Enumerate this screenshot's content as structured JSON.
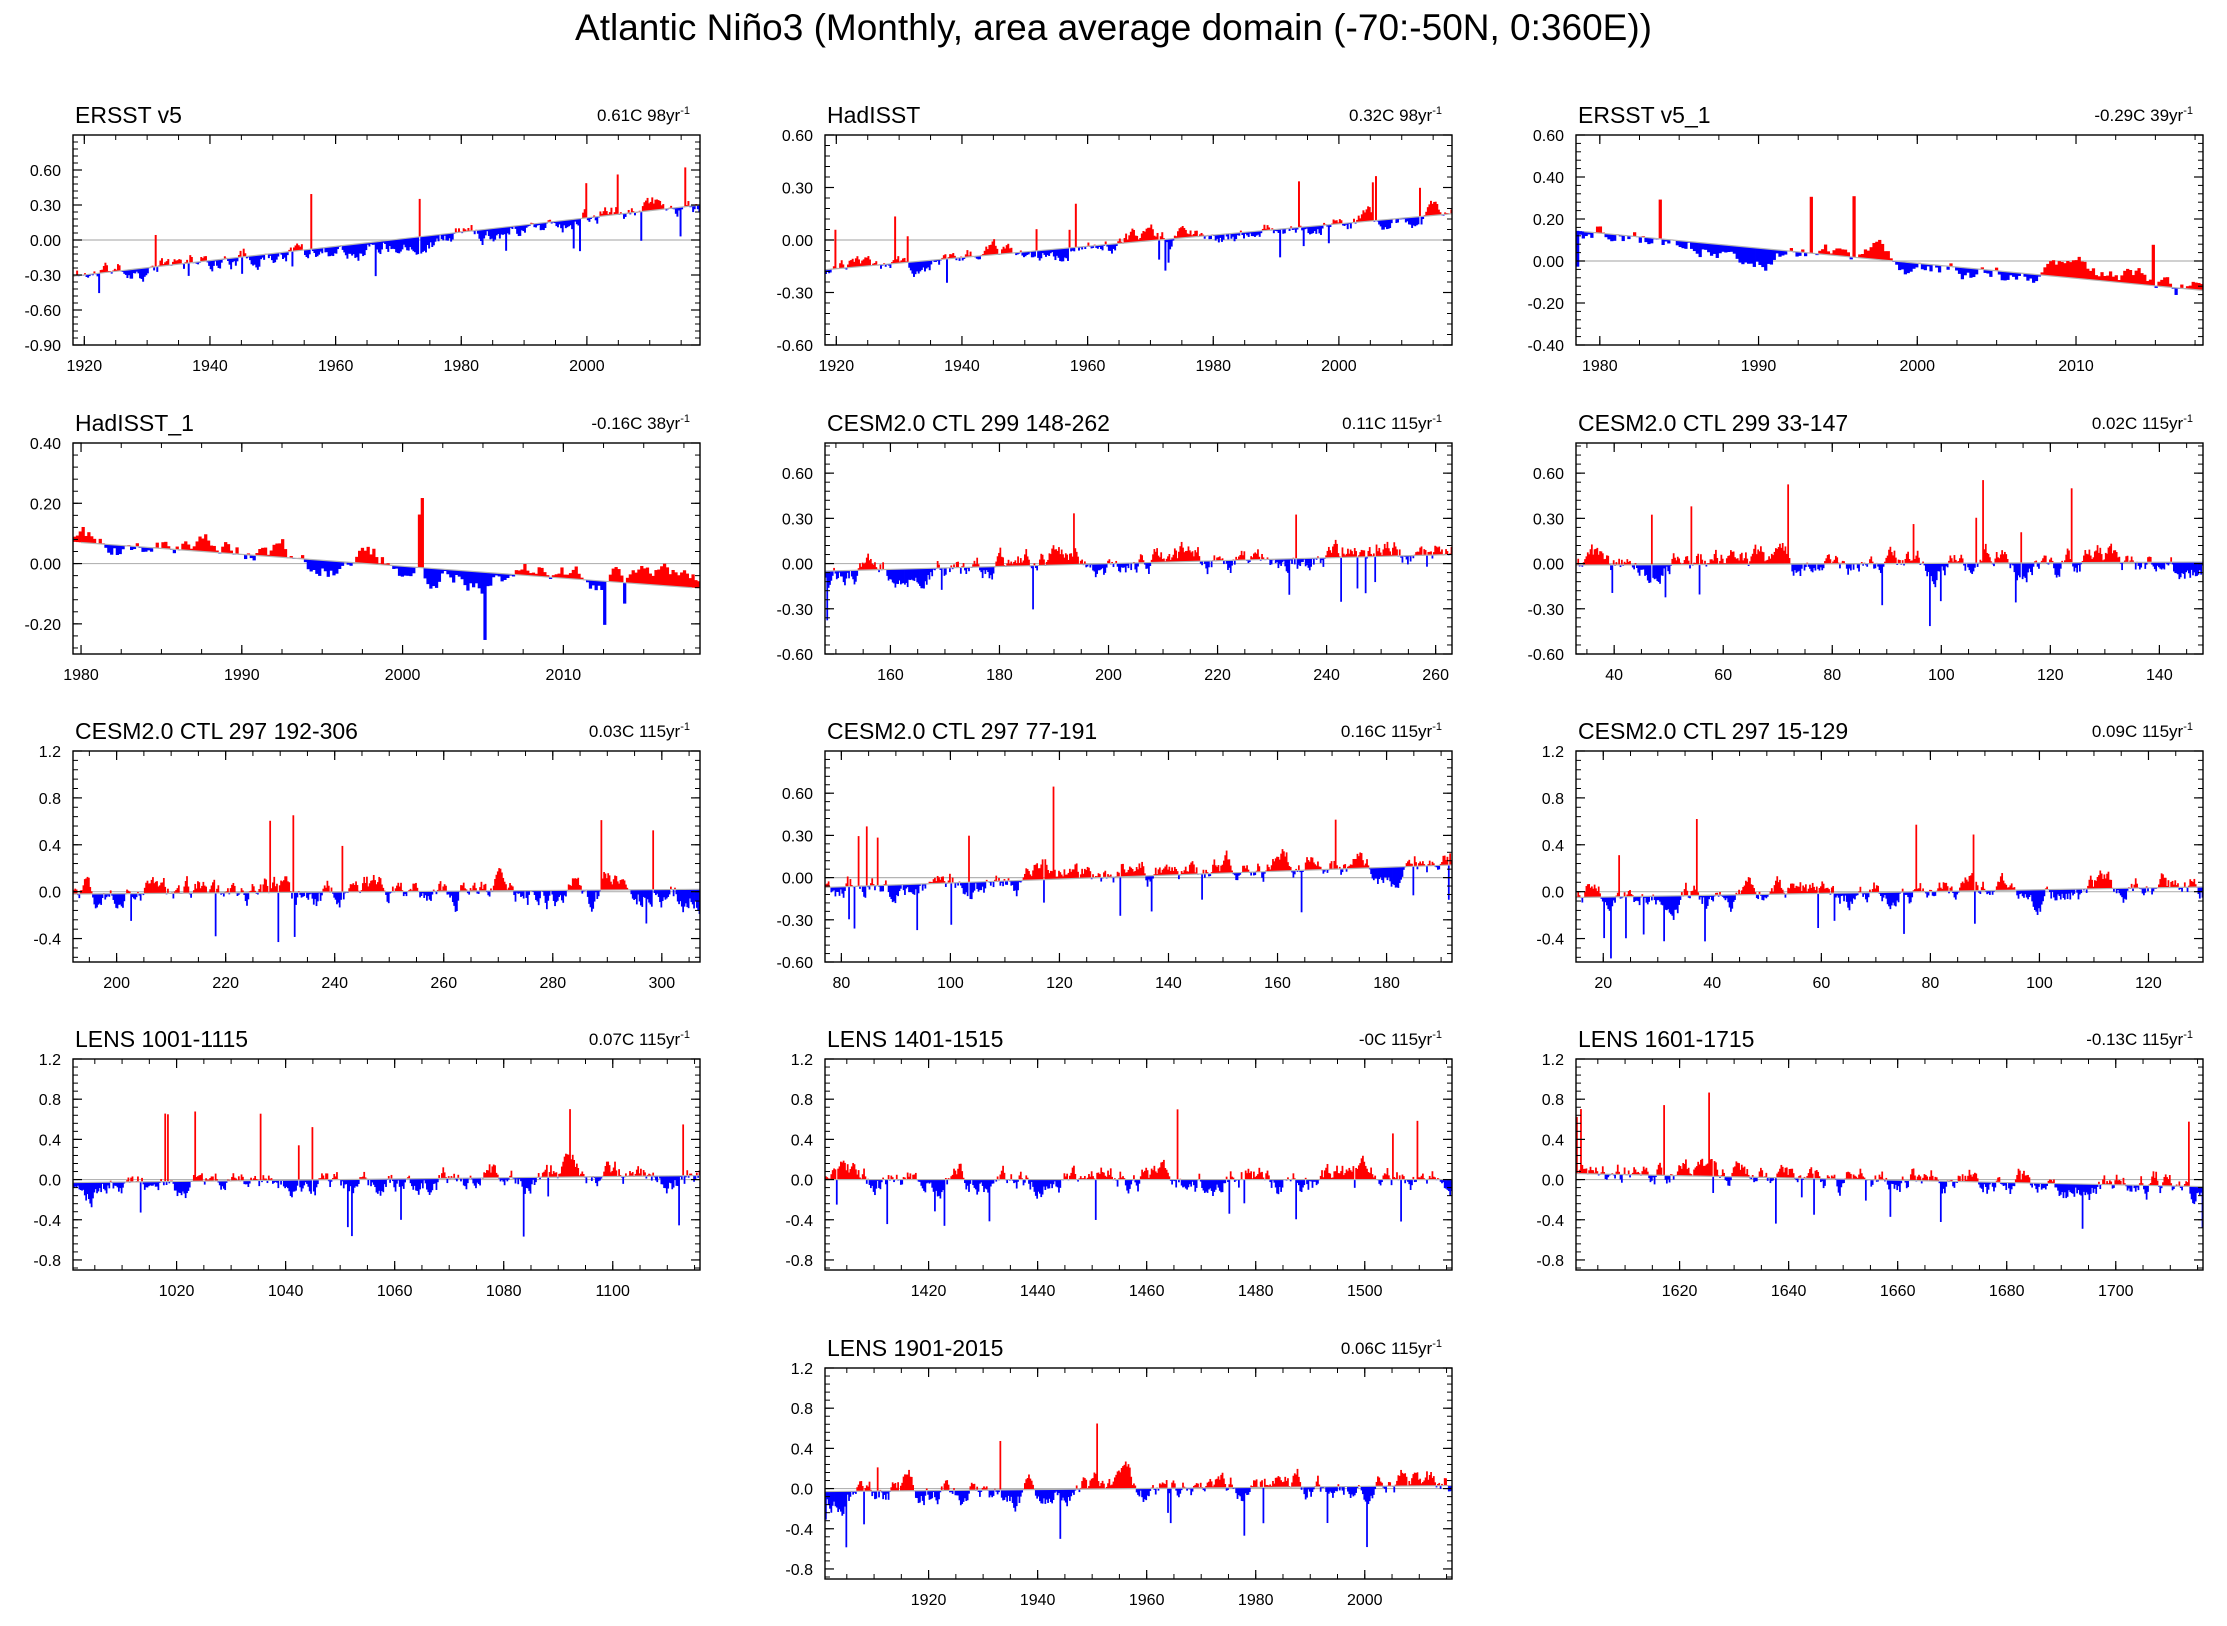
{
  "page_title": "Atlantic Niño3 (Monthly, area average domain (-70:-50N, 0:360E))",
  "colors": {
    "positive": "#ff0000",
    "negative": "#0000ff",
    "trend": "#b4b4b4",
    "frame": "#000000"
  },
  "chart_data": [
    {
      "type": "area",
      "title": "ERSST v5",
      "trend_label": "0.61C 98yr",
      "trend_unit_sup": "-1",
      "x_range": [
        1918.2,
        2018
      ],
      "x_ticks": [
        1920,
        1940,
        1960,
        1980,
        2000
      ],
      "y_range": [
        -0.9,
        0.9
      ],
      "y_ticks": [
        "-0.90",
        "-0.60",
        "-0.30",
        "0.00",
        "0.30",
        "0.60"
      ],
      "trend_line": [
        [
          1918.2,
          -0.31
        ],
        [
          2018,
          0.3
        ]
      ],
      "noise_amplitude": 0.2,
      "seed": 11
    },
    {
      "type": "area",
      "title": "HadISST",
      "trend_label": "0.32C 98yr",
      "trend_unit_sup": "-1",
      "x_range": [
        1918.2,
        2018
      ],
      "x_ticks": [
        1920,
        1940,
        1960,
        1980,
        2000
      ],
      "y_range": [
        -0.6,
        0.6
      ],
      "y_ticks": [
        "-0.60",
        "-0.30",
        "0.00",
        "0.30",
        "0.60"
      ],
      "trend_line": [
        [
          1918.2,
          -0.17
        ],
        [
          2018,
          0.15
        ]
      ],
      "noise_amplitude": 0.12,
      "seed": 23
    },
    {
      "type": "area",
      "title": "ERSST v5_1",
      "trend_label": "-0.29C 39yr",
      "trend_unit_sup": "-1",
      "x_range": [
        1978.5,
        2018
      ],
      "x_ticks": [
        1980,
        1990,
        2000,
        2010
      ],
      "y_range": [
        -0.4,
        0.6
      ],
      "y_ticks": [
        "-0.40",
        "-0.20",
        "0.00",
        "0.20",
        "0.40",
        "0.60"
      ],
      "trend_line": [
        [
          1979,
          0.14
        ],
        [
          2018,
          -0.14
        ]
      ],
      "noise_amplitude": 0.12,
      "seed": 37
    },
    {
      "type": "area",
      "title": "HadISST_1",
      "trend_label": "-0.16C 38yr",
      "trend_unit_sup": "-1",
      "x_range": [
        1979.5,
        2018.5
      ],
      "x_ticks": [
        1980,
        1990,
        2000,
        2010
      ],
      "y_range": [
        -0.3,
        0.4
      ],
      "y_ticks": [
        "-0.20",
        "0.00",
        "0.20",
        "0.40"
      ],
      "trend_line": [
        [
          1980,
          0.07
        ],
        [
          2018,
          -0.08
        ]
      ],
      "noise_amplitude": 0.1,
      "seed": 41
    },
    {
      "type": "area",
      "title": "CESM2.0 CTL 299 148-262",
      "trend_label": "0.11C 115yr",
      "trend_unit_sup": "-1",
      "x_range": [
        148,
        263
      ],
      "x_ticks": [
        160,
        180,
        200,
        220,
        240,
        260
      ],
      "y_range": [
        -0.6,
        0.8
      ],
      "y_ticks": [
        "-0.60",
        "-0.30",
        "0.00",
        "0.30",
        "0.60"
      ],
      "trend_line": [
        [
          148,
          -0.05
        ],
        [
          263,
          0.06
        ]
      ],
      "noise_amplitude": 0.2,
      "seed": 53
    },
    {
      "type": "area",
      "title": "CESM2.0 CTL 299 33-147",
      "trend_label": "0.02C 115yr",
      "trend_unit_sup": "-1",
      "x_range": [
        33,
        148
      ],
      "x_ticks": [
        40,
        60,
        80,
        100,
        120,
        140
      ],
      "y_range": [
        -0.6,
        0.8
      ],
      "y_ticks": [
        "-0.60",
        "-0.30",
        "0.00",
        "0.30",
        "0.60"
      ],
      "trend_line": [
        [
          33,
          -0.01
        ],
        [
          148,
          0.01
        ]
      ],
      "noise_amplitude": 0.2,
      "seed": 61
    },
    {
      "type": "area",
      "title": "CESM2.0 CTL 297 192-306",
      "trend_label": "0.03C 115yr",
      "trend_unit_sup": "-1",
      "x_range": [
        192,
        307
      ],
      "x_ticks": [
        200,
        220,
        240,
        260,
        280,
        300
      ],
      "y_range": [
        -0.6,
        1.2
      ],
      "y_ticks": [
        "-0.4",
        "0.0",
        "0.4",
        "0.8",
        "1.2"
      ],
      "trend_line": [
        [
          192,
          -0.02
        ],
        [
          307,
          0.02
        ]
      ],
      "noise_amplitude": 0.28,
      "seed": 71
    },
    {
      "type": "area",
      "title": "CESM2.0 CTL 297 77-191",
      "trend_label": "0.16C 115yr",
      "trend_unit_sup": "-1",
      "x_range": [
        77,
        192
      ],
      "x_ticks": [
        80,
        100,
        120,
        140,
        160,
        180
      ],
      "y_range": [
        -0.6,
        0.9
      ],
      "y_ticks": [
        "-0.60",
        "-0.30",
        "0.00",
        "0.30",
        "0.60"
      ],
      "trend_line": [
        [
          77,
          -0.07
        ],
        [
          192,
          0.09
        ]
      ],
      "noise_amplitude": 0.22,
      "seed": 83
    },
    {
      "type": "area",
      "title": "CESM2.0 CTL 297 15-129",
      "trend_label": "0.09C 115yr",
      "trend_unit_sup": "-1",
      "x_range": [
        15,
        130
      ],
      "x_ticks": [
        20,
        40,
        60,
        80,
        100,
        120
      ],
      "y_range": [
        -0.6,
        1.2
      ],
      "y_ticks": [
        "-0.4",
        "0.0",
        "0.4",
        "0.8",
        "1.2"
      ],
      "trend_line": [
        [
          15,
          -0.05
        ],
        [
          130,
          0.04
        ]
      ],
      "noise_amplitude": 0.25,
      "seed": 97
    },
    {
      "type": "area",
      "title": "LENS 1001-1115",
      "trend_label": "0.07C 115yr",
      "trend_unit_sup": "-1",
      "x_range": [
        1001,
        1116
      ],
      "x_ticks": [
        1020,
        1040,
        1060,
        1080,
        1100
      ],
      "y_range": [
        -0.9,
        1.2
      ],
      "y_ticks": [
        "-0.8",
        "-0.4",
        "0.0",
        "0.4",
        "0.8",
        "1.2"
      ],
      "trend_line": [
        [
          1001,
          -0.03
        ],
        [
          1116,
          0.04
        ]
      ],
      "noise_amplitude": 0.3,
      "seed": 101
    },
    {
      "type": "area",
      "title": "LENS 1401-1515",
      "trend_label": "-0C 115yr",
      "trend_unit_sup": "-1",
      "x_range": [
        1401,
        1516
      ],
      "x_ticks": [
        1420,
        1440,
        1460,
        1480,
        1500
      ],
      "y_range": [
        -0.9,
        1.2
      ],
      "y_ticks": [
        "-0.8",
        "-0.4",
        "0.0",
        "0.4",
        "0.8",
        "1.2"
      ],
      "trend_line": [
        [
          1401,
          0.0
        ],
        [
          1516,
          0.0
        ]
      ],
      "noise_amplitude": 0.3,
      "seed": 113
    },
    {
      "type": "area",
      "title": "LENS 1601-1715",
      "trend_label": "-0.13C 115yr",
      "trend_unit_sup": "-1",
      "x_range": [
        1601,
        1716
      ],
      "x_ticks": [
        1620,
        1640,
        1660,
        1680,
        1700
      ],
      "y_range": [
        -0.9,
        1.2
      ],
      "y_ticks": [
        "-0.8",
        "-0.4",
        "0.0",
        "0.4",
        "0.8",
        "1.2"
      ],
      "trend_line": [
        [
          1601,
          0.06
        ],
        [
          1716,
          -0.07
        ]
      ],
      "noise_amplitude": 0.3,
      "seed": 127
    },
    {
      "type": "area",
      "title": "LENS 1901-2015",
      "trend_label": "0.06C 115yr",
      "trend_unit_sup": "-1",
      "x_range": [
        1901,
        2016
      ],
      "x_ticks": [
        1920,
        1940,
        1960,
        1980,
        2000
      ],
      "y_range": [
        -0.9,
        1.2
      ],
      "y_ticks": [
        "-0.8",
        "-0.4",
        "0.0",
        "0.4",
        "0.8",
        "1.2"
      ],
      "trend_line": [
        [
          1901,
          -0.03
        ],
        [
          2016,
          0.03
        ]
      ],
      "noise_amplitude": 0.3,
      "seed": 131
    }
  ]
}
